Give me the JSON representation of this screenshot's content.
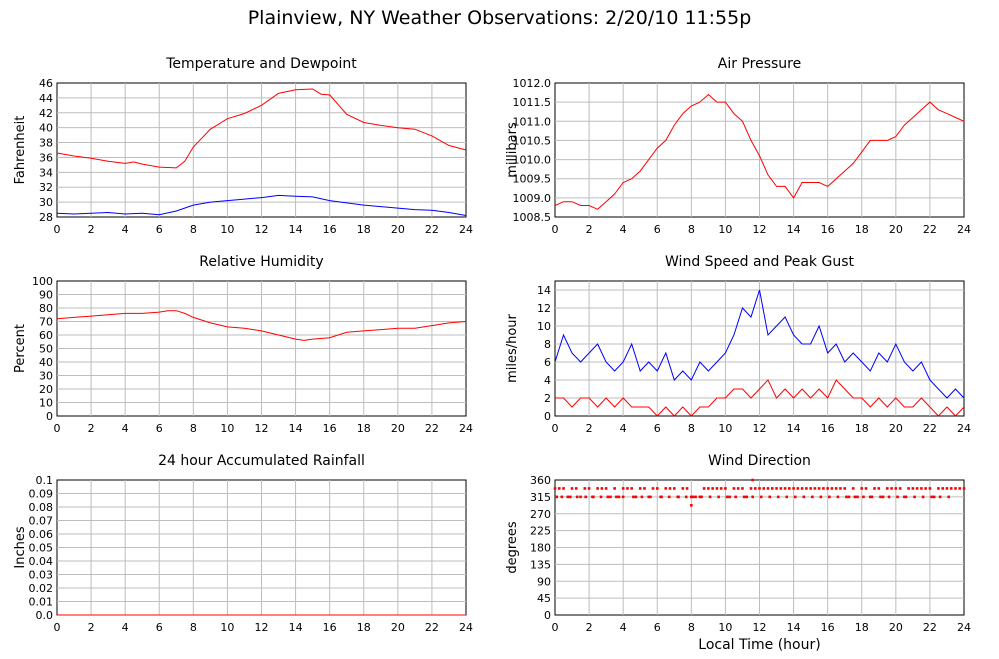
{
  "page": {
    "title": "Plainview, NY Weather Observations: 2/20/10 11:55p"
  },
  "chart_data": [
    {
      "type": "line",
      "title": "Temperature and Dewpoint",
      "xlabel": "",
      "ylabel": "Fahrenheit",
      "xlim": [
        0,
        24
      ],
      "ylim": [
        28,
        46
      ],
      "xticks": [
        0,
        2,
        4,
        6,
        8,
        10,
        12,
        14,
        16,
        18,
        20,
        22,
        24
      ],
      "yticks": [
        28,
        30,
        32,
        34,
        36,
        38,
        40,
        42,
        44,
        46
      ],
      "grid": true,
      "series": [
        {
          "color": "#ff0000",
          "x": [
            0,
            1,
            2,
            3,
            4,
            4.5,
            5,
            6,
            7,
            7.5,
            8,
            9,
            10,
            11,
            12,
            13,
            14,
            15,
            15.5,
            16,
            17,
            18,
            19,
            20,
            21,
            22,
            23,
            24
          ],
          "y": [
            36.6,
            36.2,
            35.9,
            35.5,
            35.2,
            35.4,
            35.1,
            34.7,
            34.6,
            35.5,
            37.4,
            39.8,
            41.2,
            41.9,
            43.0,
            44.6,
            45.1,
            45.2,
            44.5,
            44.4,
            41.8,
            40.7,
            40.3,
            40.0,
            39.8,
            38.9,
            37.6,
            37.0
          ]
        },
        {
          "color": "#0000ff",
          "x": [
            0,
            1,
            2,
            3,
            4,
            5,
            6,
            7,
            8,
            9,
            10,
            11,
            12,
            13,
            14,
            15,
            16,
            17,
            18,
            19,
            20,
            21,
            22,
            23,
            24
          ],
          "y": [
            28.5,
            28.4,
            28.5,
            28.6,
            28.4,
            28.5,
            28.3,
            28.8,
            29.6,
            30.0,
            30.2,
            30.4,
            30.6,
            30.9,
            30.8,
            30.7,
            30.2,
            29.9,
            29.6,
            29.4,
            29.2,
            29.0,
            28.9,
            28.6,
            28.2
          ]
        }
      ]
    },
    {
      "type": "line",
      "title": "Air Pressure",
      "xlabel": "",
      "ylabel": "millibars",
      "xlim": [
        0,
        24
      ],
      "ylim": [
        1008.5,
        1012.0
      ],
      "xticks": [
        0,
        2,
        4,
        6,
        8,
        10,
        12,
        14,
        16,
        18,
        20,
        22,
        24
      ],
      "yticks": [
        1008.5,
        1009.0,
        1009.5,
        1010.0,
        1010.5,
        1011.0,
        1011.5,
        1012.0
      ],
      "grid": true,
      "series": [
        {
          "color": "#ff0000",
          "x": [
            0,
            0.5,
            1,
            1.5,
            2,
            2.5,
            3,
            3.5,
            4,
            4.5,
            5,
            5.5,
            6,
            6.5,
            7,
            7.5,
            8,
            8.5,
            9,
            9.5,
            10,
            10.5,
            11,
            11.5,
            12,
            12.5,
            13,
            13.5,
            14,
            14.5,
            15,
            15.5,
            16,
            16.5,
            17,
            17.5,
            18,
            18.5,
            19,
            19.5,
            20,
            20.5,
            21,
            21.5,
            22,
            22.5,
            23,
            23.5,
            24
          ],
          "y": [
            1008.8,
            1008.9,
            1008.9,
            1008.8,
            1008.8,
            1008.7,
            1008.9,
            1009.1,
            1009.4,
            1009.5,
            1009.7,
            1010.0,
            1010.3,
            1010.5,
            1010.9,
            1011.2,
            1011.4,
            1011.5,
            1011.7,
            1011.5,
            1011.5,
            1011.2,
            1011.0,
            1010.5,
            1010.1,
            1009.6,
            1009.3,
            1009.3,
            1009.0,
            1009.4,
            1009.4,
            1009.4,
            1009.3,
            1009.5,
            1009.7,
            1009.9,
            1010.2,
            1010.5,
            1010.5,
            1010.5,
            1010.6,
            1010.9,
            1011.1,
            1011.3,
            1011.5,
            1011.3,
            1011.2,
            1011.1,
            1011.0
          ]
        }
      ]
    },
    {
      "type": "line",
      "title": "Relative Humidity",
      "xlabel": "",
      "ylabel": "Percent",
      "xlim": [
        0,
        24
      ],
      "ylim": [
        0,
        100
      ],
      "xticks": [
        0,
        2,
        4,
        6,
        8,
        10,
        12,
        14,
        16,
        18,
        20,
        22,
        24
      ],
      "yticks": [
        0,
        10,
        20,
        30,
        40,
        50,
        60,
        70,
        80,
        90,
        100
      ],
      "grid": true,
      "series": [
        {
          "color": "#ff0000",
          "x": [
            0,
            1,
            2,
            3,
            4,
            5,
            6,
            6.5,
            7,
            7.5,
            8,
            9,
            10,
            11,
            12,
            13,
            14,
            14.5,
            15,
            16,
            17,
            18,
            19,
            20,
            21,
            22,
            23,
            24
          ],
          "y": [
            72,
            73,
            74,
            75,
            76,
            76,
            77,
            78,
            78,
            76,
            73,
            69,
            66,
            65,
            63,
            60,
            57,
            56,
            57,
            58,
            62,
            63,
            64,
            65,
            65,
            67,
            69,
            70
          ]
        }
      ]
    },
    {
      "type": "bar",
      "title": "Wind Speed and Peak Gust",
      "xlabel": "",
      "ylabel": "miles/hour",
      "xlim": [
        0,
        24
      ],
      "ylim": [
        0,
        15
      ],
      "xticks": [
        0,
        2,
        4,
        6,
        8,
        10,
        12,
        14,
        16,
        18,
        20,
        22,
        24
      ],
      "yticks": [
        0,
        2,
        4,
        6,
        8,
        10,
        12,
        14
      ],
      "grid": true,
      "series": [
        {
          "color": "#0000ff",
          "x": [
            0,
            0.5,
            1,
            1.5,
            2,
            2.5,
            3,
            3.5,
            4,
            4.5,
            5,
            5.5,
            6,
            6.5,
            7,
            7.5,
            8,
            8.5,
            9,
            9.5,
            10,
            10.5,
            11,
            11.5,
            12,
            12.5,
            13,
            13.5,
            14,
            14.5,
            15,
            15.5,
            16,
            16.5,
            17,
            17.5,
            18,
            18.5,
            19,
            19.5,
            20,
            20.5,
            21,
            21.5,
            22,
            22.5,
            23,
            23.5,
            24
          ],
          "y": [
            6,
            9,
            7,
            6,
            7,
            8,
            6,
            5,
            6,
            8,
            5,
            6,
            5,
            7,
            4,
            5,
            4,
            6,
            5,
            6,
            7,
            9,
            12,
            11,
            14,
            9,
            10,
            11,
            9,
            8,
            8,
            10,
            7,
            8,
            6,
            7,
            6,
            5,
            7,
            6,
            8,
            6,
            5,
            6,
            4,
            3,
            2,
            3,
            2
          ]
        },
        {
          "color": "#ff0000",
          "x": [
            0,
            0.5,
            1,
            1.5,
            2,
            2.5,
            3,
            3.5,
            4,
            4.5,
            5,
            5.5,
            6,
            6.5,
            7,
            7.5,
            8,
            8.5,
            9,
            9.5,
            10,
            10.5,
            11,
            11.5,
            12,
            12.5,
            13,
            13.5,
            14,
            14.5,
            15,
            15.5,
            16,
            16.5,
            17,
            17.5,
            18,
            18.5,
            19,
            19.5,
            20,
            20.5,
            21,
            21.5,
            22,
            22.5,
            23,
            23.5,
            24
          ],
          "y": [
            2,
            2,
            1,
            2,
            2,
            1,
            2,
            1,
            2,
            1,
            1,
            1,
            0,
            1,
            0,
            1,
            0,
            1,
            1,
            2,
            2,
            3,
            3,
            2,
            3,
            4,
            2,
            3,
            2,
            3,
            2,
            3,
            2,
            4,
            3,
            2,
            2,
            1,
            2,
            1,
            2,
            1,
            1,
            2,
            1,
            0,
            1,
            0,
            1
          ]
        }
      ]
    },
    {
      "type": "line",
      "title": "24 hour Accumulated Rainfall",
      "xlabel": "",
      "ylabel": "Inches",
      "xlim": [
        0,
        24
      ],
      "ylim": [
        0,
        0.1
      ],
      "xticks": [
        0,
        2,
        4,
        6,
        8,
        10,
        12,
        14,
        16,
        18,
        20,
        22,
        24
      ],
      "yticks": [
        0.0,
        0.01,
        0.02,
        0.03,
        0.04,
        0.05,
        0.06,
        0.07,
        0.08,
        0.09,
        0.1
      ],
      "ytick_labels": [
        "0.0",
        "0.01",
        "0.02",
        "0.03",
        "0.04",
        "0.05",
        "0.06",
        "0.07",
        "0.08",
        "0.09",
        "0.1"
      ],
      "grid": true,
      "series": [
        {
          "color": "#ff0000",
          "x": [
            0,
            24
          ],
          "y": [
            0,
            0
          ]
        }
      ]
    },
    {
      "type": "scatter",
      "title": "Wind Direction",
      "xlabel": "Local Time (hour)",
      "ylabel": "degrees",
      "xlim": [
        0,
        24
      ],
      "ylim": [
        0,
        360
      ],
      "xticks": [
        0,
        2,
        4,
        6,
        8,
        10,
        12,
        14,
        16,
        18,
        20,
        22,
        24
      ],
      "yticks": [
        0,
        45,
        90,
        135,
        180,
        225,
        270,
        315,
        360
      ],
      "grid": true,
      "series": [
        {
          "color": "#ff0000",
          "x": [
            0,
            0.25,
            0.5,
            0.75,
            1,
            1.25,
            1.5,
            1.75,
            2,
            2.25,
            2.5,
            2.75,
            3,
            3.25,
            3.5,
            3.75,
            4,
            4.25,
            4.5,
            4.75,
            5,
            5.25,
            5.5,
            5.75,
            6,
            6.25,
            6.5,
            6.75,
            7,
            7.25,
            7.5,
            7.75,
            8,
            8.25,
            8.5,
            8.75,
            9,
            9.25,
            9.5,
            9.75,
            10,
            10.25,
            10.5,
            10.75,
            11,
            11.25,
            11.5,
            11.75,
            12,
            12.25,
            12.5,
            12.75,
            13,
            13.25,
            13.5,
            13.75,
            14,
            14.25,
            14.5,
            14.75,
            15,
            15.25,
            15.5,
            15.75,
            16,
            16.25,
            16.5,
            16.75,
            17,
            17.25,
            17.5,
            17.75,
            18,
            18.25,
            18.5,
            18.75,
            19,
            19.25,
            19.5,
            19.75,
            20,
            20.25,
            20.5,
            20.75,
            21,
            21.25,
            21.5,
            21.75,
            22,
            22.25,
            22.5,
            22.75,
            23,
            23.25,
            23.5,
            23.75,
            24,
            0.1,
            0.4,
            0.9,
            1.3,
            1.8,
            2.2,
            2.7,
            3.1,
            3.6,
            4.0,
            4.6,
            5.1,
            5.6,
            6.2,
            6.7,
            7.2,
            7.7,
            8.1,
            8.6,
            9.1,
            9.6,
            10.1,
            10.6,
            11.1,
            11.6,
            12.1,
            12.6,
            13.1,
            13.6,
            14.1,
            14.6,
            15.1,
            15.6,
            16.1,
            16.6,
            17.1,
            17.6,
            18.1,
            18.6,
            19.1,
            19.6,
            20.1,
            20.6,
            21.1,
            21.6,
            22.1,
            22.6,
            23.1,
            8,
            11.6
          ],
          "y": [
            337.5,
            337.5,
            337.5,
            315,
            337.5,
            337.5,
            315,
            337.5,
            337.5,
            315,
            337.5,
            337.5,
            337.5,
            315,
            337.5,
            315,
            337.5,
            337.5,
            337.5,
            315,
            337.5,
            337.5,
            315,
            337.5,
            337.5,
            315,
            337.5,
            337.5,
            337.5,
            315,
            337.5,
            337.5,
            315,
            315,
            315,
            337.5,
            337.5,
            337.5,
            337.5,
            337.5,
            337.5,
            315,
            337.5,
            337.5,
            337.5,
            315,
            337.5,
            337.5,
            337.5,
            337.5,
            337.5,
            337.5,
            337.5,
            337.5,
            337.5,
            337.5,
            337.5,
            337.5,
            337.5,
            337.5,
            337.5,
            337.5,
            337.5,
            337.5,
            337.5,
            337.5,
            337.5,
            337.5,
            337.5,
            315,
            337.5,
            315,
            337.5,
            337.5,
            315,
            337.5,
            337.5,
            315,
            337.5,
            337.5,
            337.5,
            337.5,
            315,
            337.5,
            337.5,
            337.5,
            337.5,
            337.5,
            337.5,
            315,
            337.5,
            337.5,
            337.5,
            337.5,
            337.5,
            337.5,
            337.5,
            315,
            315,
            315,
            315,
            315,
            315,
            315,
            315,
            315,
            315,
            315,
            315,
            315,
            315,
            315,
            315,
            315,
            315,
            315,
            315,
            315,
            315,
            315,
            315,
            315,
            315,
            315,
            315,
            315,
            315,
            315,
            315,
            315,
            315,
            315,
            315,
            315,
            315,
            315,
            315,
            315,
            315,
            315,
            315,
            315,
            315,
            315,
            315,
            292.5,
            360
          ]
        }
      ]
    }
  ]
}
